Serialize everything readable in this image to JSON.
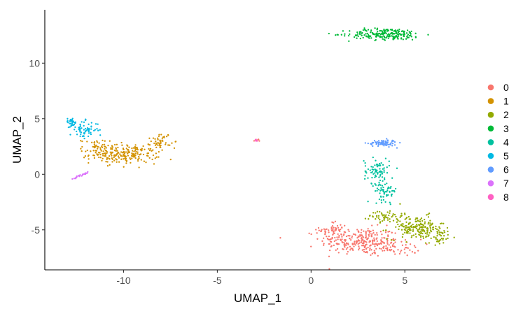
{
  "chart_data": {
    "type": "scatter",
    "xlabel": "UMAP_1",
    "ylabel": "UMAP_2",
    "xlim": [
      -14.2,
      8.5
    ],
    "ylim": [
      -8.6,
      14.8
    ],
    "x_ticks": [
      -10,
      -5,
      0,
      5
    ],
    "y_ticks": [
      -5,
      0,
      5,
      10
    ],
    "x_tick_labels": [
      "-10",
      "-5",
      "0",
      "5"
    ],
    "y_tick_labels": [
      "-5",
      "0",
      "5",
      "10"
    ],
    "grid": false,
    "legend_position": "right",
    "series": [
      {
        "name": "0",
        "color": "#F8766D",
        "clusters": [
          {
            "center": [
              2.6,
              -6.0
            ],
            "spread": [
              1.4,
              0.8
            ],
            "n": 260
          },
          {
            "center": [
              1.2,
              -5.0
            ],
            "spread": [
              0.5,
              0.5
            ],
            "n": 50
          },
          {
            "center": [
              4.4,
              -6.6
            ],
            "spread": [
              1.0,
              0.5
            ],
            "n": 60
          },
          {
            "center": [
              -2.9,
              3.05
            ],
            "spread": [
              0.1,
              0.08
            ],
            "n": 7
          }
        ]
      },
      {
        "name": "1",
        "color": "#D39200",
        "clusters": [
          {
            "center": [
              -10.0,
              1.8
            ],
            "spread": [
              1.2,
              0.55
            ],
            "n": 220
          },
          {
            "center": [
              -8.0,
              3.0
            ],
            "spread": [
              0.35,
              0.5
            ],
            "n": 50
          },
          {
            "center": [
              -11.5,
              2.4
            ],
            "spread": [
              0.5,
              0.5
            ],
            "n": 40
          }
        ]
      },
      {
        "name": "2",
        "color": "#93AA00",
        "clusters": [
          {
            "center": [
              5.6,
              -4.8
            ],
            "spread": [
              1.0,
              0.7
            ],
            "n": 180
          },
          {
            "center": [
              4.0,
              -3.7
            ],
            "spread": [
              0.6,
              0.4
            ],
            "n": 50
          },
          {
            "center": [
              6.8,
              -5.6
            ],
            "spread": [
              0.5,
              0.5
            ],
            "n": 40
          }
        ]
      },
      {
        "name": "3",
        "color": "#00BA38",
        "clusters": [
          {
            "center": [
              4.0,
              12.6
            ],
            "spread": [
              1.3,
              0.35
            ],
            "n": 220
          }
        ]
      },
      {
        "name": "4",
        "color": "#00C19F",
        "clusters": [
          {
            "center": [
              3.5,
              0.3
            ],
            "spread": [
              0.45,
              0.75
            ],
            "n": 80
          },
          {
            "center": [
              4.0,
              -1.5
            ],
            "spread": [
              0.4,
              0.6
            ],
            "n": 60
          }
        ]
      },
      {
        "name": "5",
        "color": "#00B9E3",
        "clusters": [
          {
            "center": [
              -12.1,
              4.0
            ],
            "spread": [
              0.5,
              0.5
            ],
            "n": 70
          },
          {
            "center": [
              -12.8,
              4.7
            ],
            "spread": [
              0.2,
              0.25
            ],
            "n": 30
          }
        ]
      },
      {
        "name": "6",
        "color": "#619CFF",
        "clusters": [
          {
            "center": [
              3.8,
              2.8
            ],
            "spread": [
              0.5,
              0.2
            ],
            "n": 80
          }
        ]
      },
      {
        "name": "7",
        "color": "#DB72FB",
        "clusters": [
          {
            "line": [
              [
                -12.8,
                -0.5
              ],
              [
                -11.9,
                0.2
              ]
            ],
            "n": 22
          }
        ]
      },
      {
        "name": "8",
        "color": "#FF61C3",
        "clusters": [
          {
            "center": [
              -2.9,
              3.0
            ],
            "spread": [
              0.08,
              0.06
            ],
            "n": 6
          }
        ]
      }
    ]
  }
}
